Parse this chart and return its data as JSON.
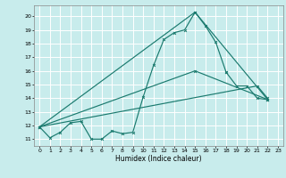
{
  "title": "",
  "xlabel": "Humidex (Indice chaleur)",
  "bg_color": "#c8ecec",
  "grid_color": "#ffffff",
  "line_color": "#1a7a6e",
  "xlim": [
    -0.5,
    23.5
  ],
  "ylim": [
    10.5,
    20.8
  ],
  "yticks": [
    11,
    12,
    13,
    14,
    15,
    16,
    17,
    18,
    19,
    20
  ],
  "xticks": [
    0,
    1,
    2,
    3,
    4,
    5,
    6,
    7,
    8,
    9,
    10,
    11,
    12,
    13,
    14,
    15,
    16,
    17,
    18,
    19,
    20,
    21,
    22,
    23
  ],
  "series": [
    {
      "x": [
        0,
        1,
        2,
        3,
        4,
        5,
        6,
        7,
        8,
        9,
        10,
        11,
        12,
        13,
        14,
        15,
        16,
        17,
        18
      ],
      "y": [
        11.9,
        11.1,
        11.5,
        12.2,
        12.3,
        11.0,
        11.0,
        11.6,
        11.4,
        11.5,
        14.1,
        16.4,
        18.3,
        18.8,
        19.0,
        20.3,
        19.3,
        18.1,
        15.9
      ]
    },
    {
      "x": [
        18,
        19,
        20,
        21,
        22
      ],
      "y": [
        15.9,
        14.9,
        14.9,
        14.0,
        13.9
      ]
    },
    {
      "x": [
        0,
        15,
        22
      ],
      "y": [
        11.9,
        20.3,
        13.9
      ]
    },
    {
      "x": [
        0,
        15,
        22
      ],
      "y": [
        11.9,
        16.0,
        13.9
      ]
    },
    {
      "x": [
        0,
        21,
        22
      ],
      "y": [
        11.9,
        14.9,
        14.0
      ]
    }
  ]
}
